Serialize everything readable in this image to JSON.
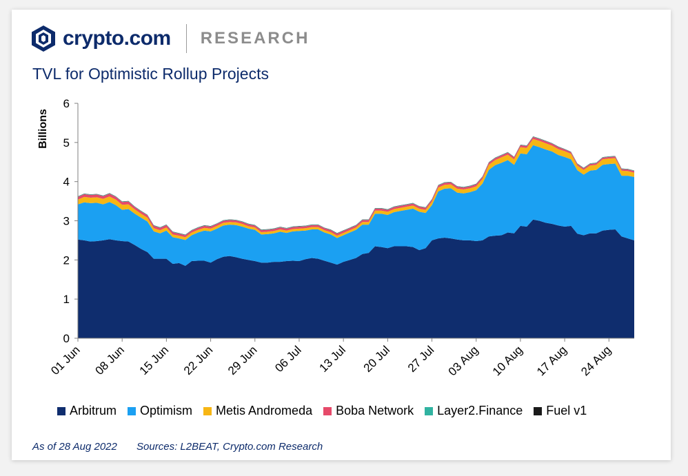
{
  "brand": {
    "name": "crypto.com",
    "section": "RESEARCH"
  },
  "footer": {
    "as_of": "As of 28 Aug 2022",
    "sources": "Sources:  L2BEAT, Crypto.com Research"
  },
  "colors": {
    "Arbitrum": "#0f2d6e",
    "Optimism": "#1ba0f2",
    "Metis Andromeda": "#f7b614",
    "Boba Network": "#e64a6a",
    "Layer2.Finance": "#31b3a1",
    "Fuel v1": "#1a1a1a"
  },
  "chart_data": {
    "type": "area",
    "stacked": true,
    "title": "TVL for Optimistic Rollup Projects",
    "ylabel": "Billions",
    "xlabel": "",
    "ylim": [
      0,
      6
    ],
    "yticks": [
      0,
      1,
      2,
      3,
      4,
      5,
      6
    ],
    "xticks": [
      "01 Jun",
      "08 Jun",
      "15 Jun",
      "22 Jun",
      "29 Jun",
      "06 Jul",
      "13 Jul",
      "20 Jul",
      "27 Jul",
      "03 Aug",
      "10 Aug",
      "17 Aug",
      "24 Aug"
    ],
    "x": [
      "01 Jun",
      "02 Jun",
      "03 Jun",
      "04 Jun",
      "05 Jun",
      "06 Jun",
      "07 Jun",
      "08 Jun",
      "09 Jun",
      "10 Jun",
      "11 Jun",
      "12 Jun",
      "13 Jun",
      "14 Jun",
      "15 Jun",
      "16 Jun",
      "17 Jun",
      "18 Jun",
      "19 Jun",
      "20 Jun",
      "21 Jun",
      "22 Jun",
      "23 Jun",
      "24 Jun",
      "25 Jun",
      "26 Jun",
      "27 Jun",
      "28 Jun",
      "29 Jun",
      "30 Jun",
      "01 Jul",
      "02 Jul",
      "03 Jul",
      "04 Jul",
      "05 Jul",
      "06 Jul",
      "07 Jul",
      "08 Jul",
      "09 Jul",
      "10 Jul",
      "11 Jul",
      "12 Jul",
      "13 Jul",
      "14 Jul",
      "15 Jul",
      "16 Jul",
      "17 Jul",
      "18 Jul",
      "19 Jul",
      "20 Jul",
      "21 Jul",
      "22 Jul",
      "23 Jul",
      "24 Jul",
      "25 Jul",
      "26 Jul",
      "27 Jul",
      "28 Jul",
      "29 Jul",
      "30 Jul",
      "31 Jul",
      "01 Aug",
      "02 Aug",
      "03 Aug",
      "04 Aug",
      "05 Aug",
      "06 Aug",
      "07 Aug",
      "08 Aug",
      "09 Aug",
      "10 Aug",
      "11 Aug",
      "12 Aug",
      "13 Aug",
      "14 Aug",
      "15 Aug",
      "16 Aug",
      "17 Aug",
      "18 Aug",
      "19 Aug",
      "20 Aug",
      "21 Aug",
      "22 Aug",
      "23 Aug",
      "24 Aug",
      "25 Aug",
      "26 Aug",
      "27 Aug",
      "28 Aug"
    ],
    "legend": "bottom",
    "series": [
      {
        "name": "Arbitrum",
        "values": [
          2.52,
          2.5,
          2.47,
          2.48,
          2.5,
          2.53,
          2.5,
          2.48,
          2.47,
          2.38,
          2.28,
          2.2,
          2.03,
          2.03,
          2.03,
          1.9,
          1.92,
          1.85,
          1.97,
          1.98,
          1.98,
          1.93,
          2.02,
          2.08,
          2.1,
          2.07,
          2.03,
          2.0,
          1.97,
          1.93,
          1.93,
          1.95,
          1.95,
          1.97,
          1.98,
          1.97,
          2.02,
          2.05,
          2.03,
          1.98,
          1.93,
          1.88,
          1.95,
          2.0,
          2.05,
          2.15,
          2.18,
          2.35,
          2.33,
          2.3,
          2.35,
          2.35,
          2.35,
          2.33,
          2.25,
          2.3,
          2.5,
          2.55,
          2.57,
          2.55,
          2.52,
          2.5,
          2.5,
          2.48,
          2.5,
          2.6,
          2.62,
          2.63,
          2.7,
          2.68,
          2.87,
          2.85,
          3.03,
          3.0,
          2.95,
          2.92,
          2.88,
          2.85,
          2.87,
          2.67,
          2.63,
          2.68,
          2.68,
          2.75,
          2.77,
          2.78,
          2.6,
          2.55,
          2.5
        ]
      },
      {
        "name": "Optimism",
        "values": [
          0.9,
          0.97,
          0.98,
          0.98,
          0.92,
          0.95,
          0.9,
          0.8,
          0.83,
          0.8,
          0.8,
          0.78,
          0.7,
          0.65,
          0.72,
          0.68,
          0.63,
          0.66,
          0.66,
          0.72,
          0.77,
          0.8,
          0.78,
          0.8,
          0.8,
          0.82,
          0.82,
          0.8,
          0.8,
          0.72,
          0.73,
          0.73,
          0.77,
          0.72,
          0.75,
          0.77,
          0.73,
          0.73,
          0.75,
          0.72,
          0.72,
          0.68,
          0.68,
          0.7,
          0.72,
          0.75,
          0.72,
          0.83,
          0.85,
          0.85,
          0.87,
          0.9,
          0.93,
          0.98,
          0.98,
          0.9,
          0.9,
          1.2,
          1.25,
          1.28,
          1.2,
          1.2,
          1.23,
          1.3,
          1.45,
          1.7,
          1.8,
          1.85,
          1.85,
          1.75,
          1.85,
          1.85,
          1.9,
          1.88,
          1.87,
          1.85,
          1.8,
          1.78,
          1.7,
          1.62,
          1.55,
          1.6,
          1.62,
          1.68,
          1.68,
          1.68,
          1.55,
          1.6,
          1.62
        ]
      },
      {
        "name": "Metis Andromeda",
        "values": [
          0.12,
          0.14,
          0.14,
          0.14,
          0.14,
          0.14,
          0.14,
          0.13,
          0.12,
          0.11,
          0.1,
          0.1,
          0.08,
          0.08,
          0.08,
          0.07,
          0.07,
          0.07,
          0.07,
          0.07,
          0.07,
          0.07,
          0.07,
          0.07,
          0.07,
          0.07,
          0.07,
          0.06,
          0.06,
          0.06,
          0.06,
          0.06,
          0.06,
          0.06,
          0.06,
          0.06,
          0.06,
          0.06,
          0.06,
          0.06,
          0.06,
          0.06,
          0.06,
          0.06,
          0.06,
          0.07,
          0.07,
          0.08,
          0.08,
          0.08,
          0.08,
          0.08,
          0.08,
          0.08,
          0.08,
          0.08,
          0.09,
          0.1,
          0.1,
          0.1,
          0.1,
          0.1,
          0.1,
          0.1,
          0.12,
          0.13,
          0.13,
          0.14,
          0.14,
          0.14,
          0.16,
          0.16,
          0.16,
          0.16,
          0.16,
          0.15,
          0.15,
          0.15,
          0.14,
          0.12,
          0.12,
          0.13,
          0.13,
          0.14,
          0.14,
          0.14,
          0.13,
          0.12,
          0.11
        ]
      },
      {
        "name": "Boba Network",
        "values": [
          0.07,
          0.07,
          0.07,
          0.07,
          0.07,
          0.07,
          0.07,
          0.07,
          0.07,
          0.06,
          0.06,
          0.06,
          0.06,
          0.06,
          0.06,
          0.06,
          0.05,
          0.05,
          0.05,
          0.05,
          0.05,
          0.05,
          0.05,
          0.05,
          0.05,
          0.05,
          0.05,
          0.05,
          0.05,
          0.05,
          0.05,
          0.05,
          0.05,
          0.05,
          0.05,
          0.05,
          0.05,
          0.05,
          0.05,
          0.05,
          0.05,
          0.05,
          0.05,
          0.05,
          0.05,
          0.05,
          0.05,
          0.05,
          0.05,
          0.05,
          0.05,
          0.05,
          0.05,
          0.05,
          0.05,
          0.05,
          0.05,
          0.05,
          0.05,
          0.05,
          0.05,
          0.05,
          0.05,
          0.05,
          0.05,
          0.05,
          0.05,
          0.05,
          0.05,
          0.05,
          0.05,
          0.05,
          0.05,
          0.05,
          0.05,
          0.05,
          0.05,
          0.04,
          0.04,
          0.04,
          0.04,
          0.04,
          0.04,
          0.04,
          0.04,
          0.04,
          0.04,
          0.04,
          0.04
        ]
      },
      {
        "name": "Layer2.Finance",
        "values": [
          0.01,
          0.01,
          0.01,
          0.01,
          0.01,
          0.01,
          0.01,
          0.01,
          0.01,
          0.01,
          0.01,
          0.01,
          0.01,
          0.01,
          0.01,
          0.01,
          0.01,
          0.01,
          0.01,
          0.01,
          0.01,
          0.01,
          0.01,
          0.01,
          0.01,
          0.01,
          0.01,
          0.01,
          0.01,
          0.01,
          0.01,
          0.01,
          0.01,
          0.01,
          0.01,
          0.01,
          0.01,
          0.01,
          0.01,
          0.01,
          0.01,
          0.01,
          0.01,
          0.01,
          0.01,
          0.01,
          0.01,
          0.01,
          0.01,
          0.01,
          0.01,
          0.01,
          0.01,
          0.01,
          0.01,
          0.01,
          0.01,
          0.01,
          0.01,
          0.01,
          0.01,
          0.01,
          0.01,
          0.01,
          0.01,
          0.01,
          0.01,
          0.01,
          0.01,
          0.01,
          0.01,
          0.01,
          0.01,
          0.01,
          0.01,
          0.01,
          0.01,
          0.01,
          0.01,
          0.01,
          0.01,
          0.01,
          0.01,
          0.01,
          0.01,
          0.01,
          0.01,
          0.01,
          0.01
        ]
      },
      {
        "name": "Fuel v1",
        "values": [
          0.005,
          0.005,
          0.005,
          0.005,
          0.005,
          0.005,
          0.005,
          0.005,
          0.005,
          0.005,
          0.005,
          0.005,
          0.005,
          0.005,
          0.005,
          0.005,
          0.005,
          0.005,
          0.005,
          0.005,
          0.005,
          0.005,
          0.005,
          0.005,
          0.005,
          0.005,
          0.005,
          0.005,
          0.005,
          0.005,
          0.005,
          0.005,
          0.005,
          0.005,
          0.005,
          0.005,
          0.005,
          0.005,
          0.005,
          0.005,
          0.005,
          0.005,
          0.005,
          0.005,
          0.005,
          0.005,
          0.005,
          0.005,
          0.005,
          0.005,
          0.005,
          0.005,
          0.005,
          0.005,
          0.005,
          0.005,
          0.005,
          0.005,
          0.005,
          0.005,
          0.005,
          0.005,
          0.005,
          0.005,
          0.005,
          0.005,
          0.005,
          0.005,
          0.005,
          0.005,
          0.005,
          0.005,
          0.005,
          0.005,
          0.005,
          0.005,
          0.005,
          0.005,
          0.005,
          0.005,
          0.005,
          0.005,
          0.005,
          0.005,
          0.005,
          0.005,
          0.005,
          0.005,
          0.005
        ]
      }
    ]
  }
}
